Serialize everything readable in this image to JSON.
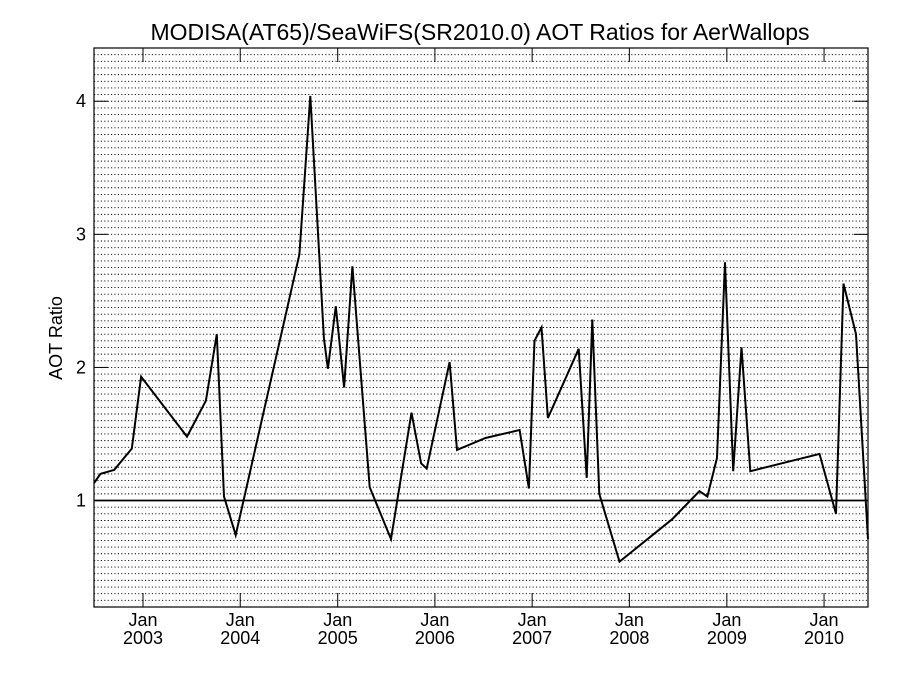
{
  "chart_data": {
    "type": "line",
    "title": "MODISA(AT65)/SeaWiFS(SR2010.0)  AOT Ratios for AerWallops",
    "ylabel": "AOT Ratio",
    "xlabel": "",
    "xlim": [
      "2002-07-01",
      "2010-06-15"
    ],
    "ylim": [
      0.2,
      4.4
    ],
    "yticks": [
      "1",
      "2",
      "3",
      "4"
    ],
    "xticks": [
      {
        "month": "Jan",
        "year": "2003",
        "date": "2003-01-01"
      },
      {
        "month": "Jan",
        "year": "2004",
        "date": "2004-01-01"
      },
      {
        "month": "Jan",
        "year": "2005",
        "date": "2005-01-01"
      },
      {
        "month": "Jan",
        "year": "2006",
        "date": "2006-01-01"
      },
      {
        "month": "Jan",
        "year": "2007",
        "date": "2007-01-01"
      },
      {
        "month": "Jan",
        "year": "2008",
        "date": "2008-01-01"
      },
      {
        "month": "Jan",
        "year": "2009",
        "date": "2009-01-01"
      },
      {
        "month": "Jan",
        "year": "2010",
        "date": "2010-01-01"
      }
    ],
    "grid": true,
    "reference_line": 1.0,
    "series": [
      {
        "color": "#000000",
        "points": [
          [
            "2002-07-01",
            1.13
          ],
          [
            "2002-07-25",
            1.2
          ],
          [
            "2002-09-15",
            1.23
          ],
          [
            "2002-11-20",
            1.39
          ],
          [
            "2002-12-25",
            1.93
          ],
          [
            "2003-06-15",
            1.48
          ],
          [
            "2003-08-25",
            1.75
          ],
          [
            "2003-10-05",
            2.25
          ],
          [
            "2003-11-01",
            1.03
          ],
          [
            "2003-12-15",
            0.74
          ],
          [
            "2004-08-10",
            2.85
          ],
          [
            "2004-09-20",
            4.04
          ],
          [
            "2004-11-10",
            2.22
          ],
          [
            "2004-11-25",
            1.99
          ],
          [
            "2004-12-25",
            2.46
          ],
          [
            "2005-01-25",
            1.85
          ],
          [
            "2005-02-25",
            2.76
          ],
          [
            "2005-04-05",
            1.77
          ],
          [
            "2005-05-01",
            1.1
          ],
          [
            "2005-07-20",
            0.71
          ],
          [
            "2005-10-05",
            1.66
          ],
          [
            "2005-11-10",
            1.28
          ],
          [
            "2005-12-01",
            1.24
          ],
          [
            "2006-02-25",
            2.04
          ],
          [
            "2006-03-25",
            1.38
          ],
          [
            "2006-07-10",
            1.47
          ],
          [
            "2006-11-15",
            1.53
          ],
          [
            "2006-12-20",
            1.09
          ],
          [
            "2007-01-10",
            2.2
          ],
          [
            "2007-02-05",
            2.3
          ],
          [
            "2007-03-01",
            1.62
          ],
          [
            "2007-06-25",
            2.14
          ],
          [
            "2007-07-25",
            1.17
          ],
          [
            "2007-08-15",
            2.36
          ],
          [
            "2007-09-10",
            1.05
          ],
          [
            "2007-11-25",
            0.54
          ],
          [
            "2008-06-10",
            0.86
          ],
          [
            "2008-09-20",
            1.07
          ],
          [
            "2008-10-20",
            1.03
          ],
          [
            "2008-11-25",
            1.32
          ],
          [
            "2008-12-25",
            2.79
          ],
          [
            "2009-01-25",
            1.22
          ],
          [
            "2009-02-25",
            2.15
          ],
          [
            "2009-03-30",
            1.22
          ],
          [
            "2009-12-15",
            1.35
          ],
          [
            "2010-02-15",
            0.9
          ],
          [
            "2010-03-15",
            2.63
          ],
          [
            "2010-05-01",
            2.25
          ],
          [
            "2010-06-15",
            0.71
          ]
        ]
      }
    ]
  }
}
